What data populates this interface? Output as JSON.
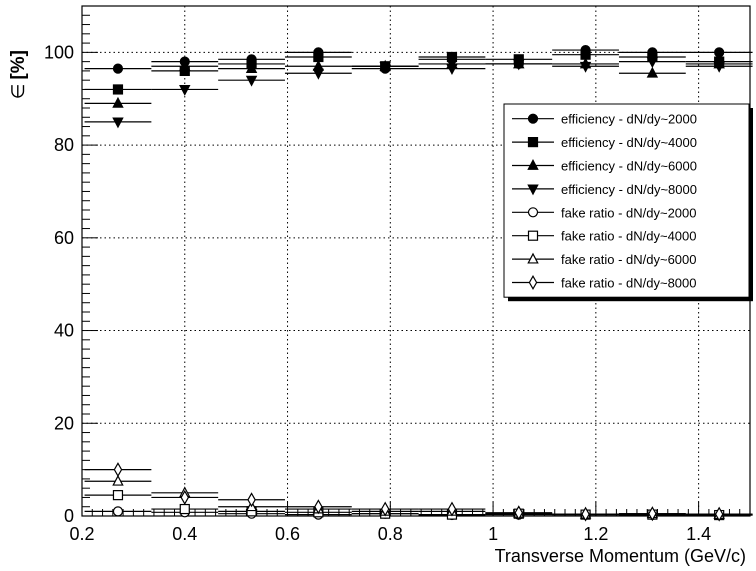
{
  "chart_data": {
    "type": "scatter",
    "title": "",
    "xlabel": "Transverse Momentum (GeV/c)",
    "ylabel_symbol": "∈",
    "ylabel_unit": "[%]",
    "xlim": [
      0.2,
      1.5
    ],
    "ylim": [
      0,
      110
    ],
    "x_ticks": [
      0.2,
      0.4,
      0.6,
      0.8,
      1,
      1.2,
      1.4
    ],
    "y_ticks": [
      0,
      20,
      40,
      60,
      80,
      100
    ],
    "grid": true,
    "legend_position": "right",
    "x_centers": [
      0.27,
      0.4,
      0.53,
      0.66,
      0.79,
      0.92,
      1.05,
      1.18,
      1.31,
      1.44
    ],
    "x_half_width": 0.065,
    "series": [
      {
        "name": "efficiency - dN/dy~2000",
        "marker": "circle-filled",
        "values": [
          96.5,
          98,
          98.5,
          100,
          96.5,
          98.5,
          97.5,
          100.5,
          100,
          100
        ]
      },
      {
        "name": "efficiency - dN/dy~4000",
        "marker": "square-filled",
        "values": [
          92,
          96,
          97.5,
          99,
          97,
          99,
          98.5,
          99.5,
          99,
          98
        ]
      },
      {
        "name": "efficiency - dN/dy~6000",
        "marker": "triangle-up-filled",
        "values": [
          89,
          97,
          96.5,
          97,
          97,
          97.5,
          97.5,
          97.5,
          95.5,
          97.5
        ]
      },
      {
        "name": "efficiency - dN/dy~8000",
        "marker": "triangle-down-filled",
        "values": [
          85,
          92,
          94,
          95.5,
          97,
          96.5,
          97.5,
          97,
          98,
          97
        ]
      },
      {
        "name": "fake ratio - dN/dy~2000",
        "marker": "circle-open",
        "values": [
          1,
          0.8,
          0.5,
          0.3,
          0.5,
          0.2,
          0.3,
          0.3,
          0.2,
          0.2
        ]
      },
      {
        "name": "fake ratio - dN/dy~4000",
        "marker": "square-open",
        "values": [
          4.5,
          1.5,
          1,
          0.8,
          0.5,
          0.3,
          0.5,
          0.3,
          0.3,
          0.2
        ]
      },
      {
        "name": "fake ratio - dN/dy~6000",
        "marker": "triangle-up-open",
        "values": [
          7.5,
          5,
          2,
          1.5,
          1,
          1,
          0.6,
          0.4,
          0.5,
          0.3
        ]
      },
      {
        "name": "fake ratio - dN/dy~8000",
        "marker": "diamond-open",
        "values": [
          10,
          4,
          3.5,
          2,
          1.5,
          1.5,
          0.7,
          0.4,
          0.5,
          0.4
        ]
      }
    ]
  }
}
